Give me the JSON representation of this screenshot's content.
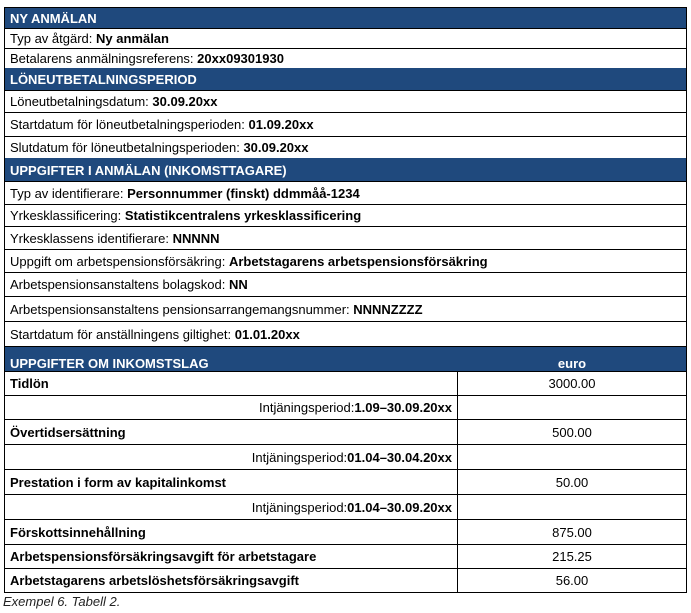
{
  "section1": {
    "title": "NY ANMÄLAN",
    "rows": [
      {
        "label": "Typ av åtgärd: ",
        "value": "Ny anmälan"
      },
      {
        "label": "Betalarens anmälningsreferens: ",
        "value": "20xx09301930"
      }
    ]
  },
  "section2": {
    "title": "LÖNEUTBETALNINGSPERIOD",
    "rows": [
      {
        "label": "Löneutbetalningsdatum: ",
        "value": "30.09.20xx"
      },
      {
        "label": "Startdatum för löneutbetalningsperioden: ",
        "value": "01.09.20xx"
      },
      {
        "label": "Slutdatum för löneutbetalningsperioden: ",
        "value": "30.09.20xx"
      }
    ]
  },
  "section3": {
    "title": "UPPGIFTER I ANMÄLAN (INKOMSTTAGARE)",
    "rows": [
      {
        "label": "Typ av identifierare: ",
        "value": "Personnummer (finskt) ddmmåå-1234"
      },
      {
        "label": "Yrkesklassificering: ",
        "value": "Statistikcentralens yrkesklassificering"
      },
      {
        "label": "Yrkesklassens identifierare: ",
        "value": "NNNNN"
      },
      {
        "label": "Uppgift om arbetspensionsförsäkring: ",
        "value": "Arbetstagarens arbetspensionsförsäkring"
      },
      {
        "label": "Arbetspensionsanstaltens bolagskod: ",
        "value": "NN"
      },
      {
        "label": "Arbetspensionsanstaltens pensionsarrangemangsnummer: ",
        "value": "NNNNZZZZ"
      },
      {
        "label": "Startdatum för anställningens giltighet: ",
        "value": "01.01.20xx"
      }
    ]
  },
  "section4": {
    "title": "UPPGIFTER OM INKOMSTSLAG",
    "unit": "euro",
    "rows": [
      {
        "name": "Tidlön",
        "amount": "3000.00",
        "period_label": "Intjäningsperiod: ",
        "period": "1.09–30.09.20xx"
      },
      {
        "name": "Övertidsersättning",
        "amount": "500.00",
        "period_label": "Intjäningsperiod: ",
        "period": "01.04–30.04.20xx"
      },
      {
        "name": "Prestation i form av kapitalinkomst",
        "amount": "50.00",
        "period_label": "Intjäningsperiod: ",
        "period": "01.04–30.09.20xx"
      },
      {
        "name": "Förskottsinnehållning",
        "amount": "875.00"
      },
      {
        "name": "Arbetspensionsförsäkringsavgift för arbetstagare",
        "amount": "215.25"
      },
      {
        "name": "Arbetstagarens arbetslöshetsförsäkringsavgift",
        "amount": "56.00"
      }
    ]
  },
  "caption": "Exempel 6. Tabell 2."
}
